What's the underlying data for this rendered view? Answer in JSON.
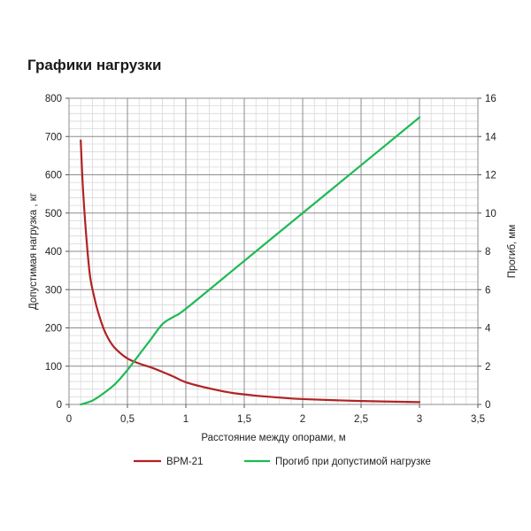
{
  "chart_data": {
    "type": "line",
    "title": "Графики нагрузки",
    "xlabel": "Расстояние между опорами, м",
    "ylabel": "Допустимая нагрузка , кг",
    "y2label": "Прогиб, мм",
    "xlim": [
      0,
      3.5
    ],
    "ylim": [
      0,
      800
    ],
    "y2lim": [
      0,
      16
    ],
    "x_ticks": [
      "0",
      "0,5",
      "1",
      "1,5",
      "2",
      "2,5",
      "3",
      "3,5"
    ],
    "x_tick_values": [
      0,
      0.5,
      1,
      1.5,
      2,
      2.5,
      3,
      3.5
    ],
    "y_ticks": [
      "0",
      "100",
      "200",
      "300",
      "400",
      "500",
      "600",
      "700",
      "800"
    ],
    "y_tick_values": [
      0,
      100,
      200,
      300,
      400,
      500,
      600,
      700,
      800
    ],
    "y2_ticks": [
      "0",
      "2",
      "4",
      "6",
      "8",
      "10",
      "12",
      "14",
      "16"
    ],
    "y2_tick_values": [
      0,
      2,
      4,
      6,
      8,
      10,
      12,
      14,
      16
    ],
    "grid": true,
    "legend_position": "bottom",
    "series": [
      {
        "name": "ВРМ-21",
        "axis": "left",
        "color": "#b22222",
        "points": [
          [
            0.1,
            690
          ],
          [
            0.12,
            560
          ],
          [
            0.15,
            430
          ],
          [
            0.18,
            335
          ],
          [
            0.22,
            275
          ],
          [
            0.25,
            240
          ],
          [
            0.3,
            195
          ],
          [
            0.35,
            165
          ],
          [
            0.4,
            145
          ],
          [
            0.5,
            120
          ],
          [
            0.6,
            107
          ],
          [
            0.7,
            97
          ],
          [
            0.8,
            85
          ],
          [
            0.9,
            72
          ],
          [
            1.0,
            58
          ],
          [
            1.2,
            42
          ],
          [
            1.4,
            30
          ],
          [
            1.6,
            23
          ],
          [
            1.8,
            18
          ],
          [
            2.0,
            14
          ],
          [
            2.5,
            9
          ],
          [
            3.0,
            6
          ]
        ]
      },
      {
        "name": "Прогиб при допустимой нагрузке",
        "axis": "right",
        "color": "#1db954",
        "points": [
          [
            0.1,
            0.0
          ],
          [
            0.2,
            0.2
          ],
          [
            0.3,
            0.6
          ],
          [
            0.4,
            1.1
          ],
          [
            0.5,
            1.8
          ],
          [
            0.6,
            2.6
          ],
          [
            0.7,
            3.4
          ],
          [
            0.8,
            4.2
          ],
          [
            0.9,
            4.6
          ],
          [
            1.0,
            5.0
          ],
          [
            1.5,
            7.5
          ],
          [
            2.0,
            10.0
          ],
          [
            2.5,
            12.5
          ],
          [
            3.0,
            15.0
          ]
        ]
      }
    ]
  }
}
